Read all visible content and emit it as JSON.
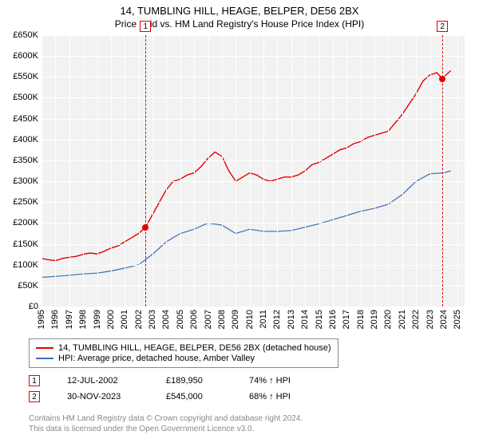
{
  "title": "14, TUMBLING HILL, HEAGE, BELPER, DE56 2BX",
  "subtitle": "Price paid vs. HM Land Registry's House Price Index (HPI)",
  "chart": {
    "type": "line",
    "background_color": "#f2f2f2",
    "grid_color": "#ffffff",
    "x_range": [
      1995,
      2025.5
    ],
    "y_range": [
      0,
      650000
    ],
    "y_ticks": [
      0,
      50000,
      100000,
      150000,
      200000,
      250000,
      300000,
      350000,
      400000,
      450000,
      500000,
      550000,
      600000,
      650000
    ],
    "y_tick_labels": [
      "£0",
      "£50K",
      "£100K",
      "£150K",
      "£200K",
      "£250K",
      "£300K",
      "£350K",
      "£400K",
      "£450K",
      "£500K",
      "£550K",
      "£600K",
      "£650K"
    ],
    "x_ticks": [
      1995,
      1996,
      1997,
      1998,
      1999,
      2000,
      2001,
      2002,
      2003,
      2004,
      2005,
      2006,
      2007,
      2008,
      2009,
      2010,
      2011,
      2012,
      2013,
      2014,
      2015,
      2016,
      2017,
      2018,
      2019,
      2020,
      2021,
      2022,
      2023,
      2024,
      2025
    ],
    "series": [
      {
        "name": "14, TUMBLING HILL, HEAGE, BELPER, DE56 2BX (detached house)",
        "color": "#e40000",
        "stroke_width": 1.4,
        "data": [
          [
            1995,
            115000
          ],
          [
            1995.5,
            112000
          ],
          [
            1996,
            110000
          ],
          [
            1996.5,
            115000
          ],
          [
            1997,
            118000
          ],
          [
            1997.5,
            120000
          ],
          [
            1998,
            125000
          ],
          [
            1998.5,
            128000
          ],
          [
            1999,
            126000
          ],
          [
            1999.5,
            132000
          ],
          [
            2000,
            140000
          ],
          [
            2000.5,
            145000
          ],
          [
            2001,
            155000
          ],
          [
            2001.5,
            165000
          ],
          [
            2002,
            175000
          ],
          [
            2002.5,
            189950
          ],
          [
            2003,
            220000
          ],
          [
            2003.5,
            250000
          ],
          [
            2004,
            280000
          ],
          [
            2004.5,
            300000
          ],
          [
            2005,
            305000
          ],
          [
            2005.5,
            315000
          ],
          [
            2006,
            320000
          ],
          [
            2006.5,
            335000
          ],
          [
            2007,
            355000
          ],
          [
            2007.5,
            370000
          ],
          [
            2008,
            360000
          ],
          [
            2008.5,
            325000
          ],
          [
            2009,
            300000
          ],
          [
            2009.5,
            310000
          ],
          [
            2010,
            320000
          ],
          [
            2010.5,
            315000
          ],
          [
            2011,
            305000
          ],
          [
            2011.5,
            300000
          ],
          [
            2012,
            305000
          ],
          [
            2012.5,
            310000
          ],
          [
            2013,
            310000
          ],
          [
            2013.5,
            315000
          ],
          [
            2014,
            325000
          ],
          [
            2014.5,
            340000
          ],
          [
            2015,
            345000
          ],
          [
            2015.5,
            355000
          ],
          [
            2016,
            365000
          ],
          [
            2016.5,
            375000
          ],
          [
            2017,
            380000
          ],
          [
            2017.5,
            390000
          ],
          [
            2018,
            395000
          ],
          [
            2018.5,
            405000
          ],
          [
            2019,
            410000
          ],
          [
            2019.5,
            415000
          ],
          [
            2020,
            420000
          ],
          [
            2020.5,
            440000
          ],
          [
            2021,
            460000
          ],
          [
            2021.5,
            485000
          ],
          [
            2022,
            510000
          ],
          [
            2022.5,
            540000
          ],
          [
            2023,
            555000
          ],
          [
            2023.5,
            560000
          ],
          [
            2023.9,
            545000
          ],
          [
            2024,
            550000
          ],
          [
            2024.5,
            565000
          ]
        ]
      },
      {
        "name": "HPI: Average price, detached house, Amber Valley",
        "color": "#3b6db5",
        "stroke_width": 1.2,
        "data": [
          [
            1995,
            70000
          ],
          [
            1996,
            72000
          ],
          [
            1997,
            75000
          ],
          [
            1998,
            78000
          ],
          [
            1999,
            80000
          ],
          [
            2000,
            85000
          ],
          [
            2001,
            92000
          ],
          [
            2002,
            100000
          ],
          [
            2003,
            125000
          ],
          [
            2004,
            155000
          ],
          [
            2005,
            175000
          ],
          [
            2006,
            185000
          ],
          [
            2007,
            200000
          ],
          [
            2008,
            195000
          ],
          [
            2009,
            175000
          ],
          [
            2010,
            185000
          ],
          [
            2011,
            180000
          ],
          [
            2012,
            180000
          ],
          [
            2013,
            182000
          ],
          [
            2014,
            190000
          ],
          [
            2015,
            198000
          ],
          [
            2016,
            208000
          ],
          [
            2017,
            218000
          ],
          [
            2018,
            228000
          ],
          [
            2019,
            235000
          ],
          [
            2020,
            245000
          ],
          [
            2021,
            268000
          ],
          [
            2022,
            300000
          ],
          [
            2023,
            318000
          ],
          [
            2024,
            320000
          ],
          [
            2024.5,
            325000
          ]
        ]
      }
    ],
    "markers": [
      {
        "id": "1",
        "x": 2002.5,
        "color": "#e40000"
      },
      {
        "id": "2",
        "x": 2023.9,
        "color": "#e40000"
      }
    ],
    "sale_points": [
      {
        "x": 2002.5,
        "y": 189950,
        "color": "#e40000"
      },
      {
        "x": 2023.9,
        "y": 545000,
        "color": "#e40000"
      }
    ]
  },
  "legend": {
    "items": [
      {
        "label": "14, TUMBLING HILL, HEAGE, BELPER, DE56 2BX (detached house)",
        "color": "#e40000"
      },
      {
        "label": "HPI: Average price, detached house, Amber Valley",
        "color": "#3b6db5"
      }
    ]
  },
  "sales": [
    {
      "id": "1",
      "date": "12-JUL-2002",
      "price": "£189,950",
      "pct": "74% ↑ HPI",
      "color": "#e40000"
    },
    {
      "id": "2",
      "date": "30-NOV-2023",
      "price": "£545,000",
      "pct": "68% ↑ HPI",
      "color": "#e40000"
    }
  ],
  "footer_line1": "Contains HM Land Registry data © Crown copyright and database right 2024.",
  "footer_line2": "This data is licensed under the Open Government Licence v3.0."
}
